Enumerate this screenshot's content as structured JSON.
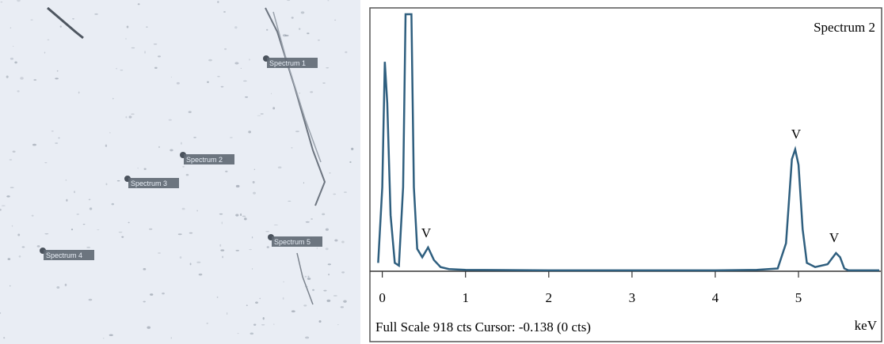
{
  "image": {
    "labels": [
      "Spectrum 1",
      "Spectrum 2",
      "Spectrum 3",
      "Spectrum 4",
      "Spectrum 5"
    ]
  },
  "chart_data": {
    "type": "line",
    "title": "Spectrum 2",
    "subtitle": "Full Scale 918 cts Cursor: -0.138 (0 cts)",
    "x_label": "keV",
    "annotations": [
      "V",
      "V",
      "V"
    ],
    "color": "#2f5f7f",
    "x": [
      -0.05,
      0.0,
      0.03,
      0.06,
      0.1,
      0.15,
      0.2,
      0.25,
      0.28,
      0.35,
      0.38,
      0.42,
      0.48,
      0.55,
      0.62,
      0.7,
      0.8,
      1.0,
      2.0,
      3.0,
      4.0,
      4.5,
      4.75,
      4.85,
      4.92,
      4.96,
      5.0,
      5.05,
      5.1,
      5.2,
      5.35,
      5.45,
      5.5,
      5.55,
      5.6,
      5.97
    ],
    "values": [
      30,
      300,
      748,
      600,
      200,
      30,
      20,
      300,
      918,
      918,
      300,
      80,
      50,
      85,
      40,
      15,
      8,
      5,
      3,
      3,
      3,
      5,
      10,
      100,
      400,
      435,
      380,
      150,
      30,
      15,
      25,
      65,
      50,
      10,
      3,
      3
    ],
    "xlim": [
      -0.12,
      5.97
    ],
    "ylim": [
      0,
      918
    ],
    "xticks": [
      0,
      1,
      2,
      3,
      4,
      5
    ]
  }
}
